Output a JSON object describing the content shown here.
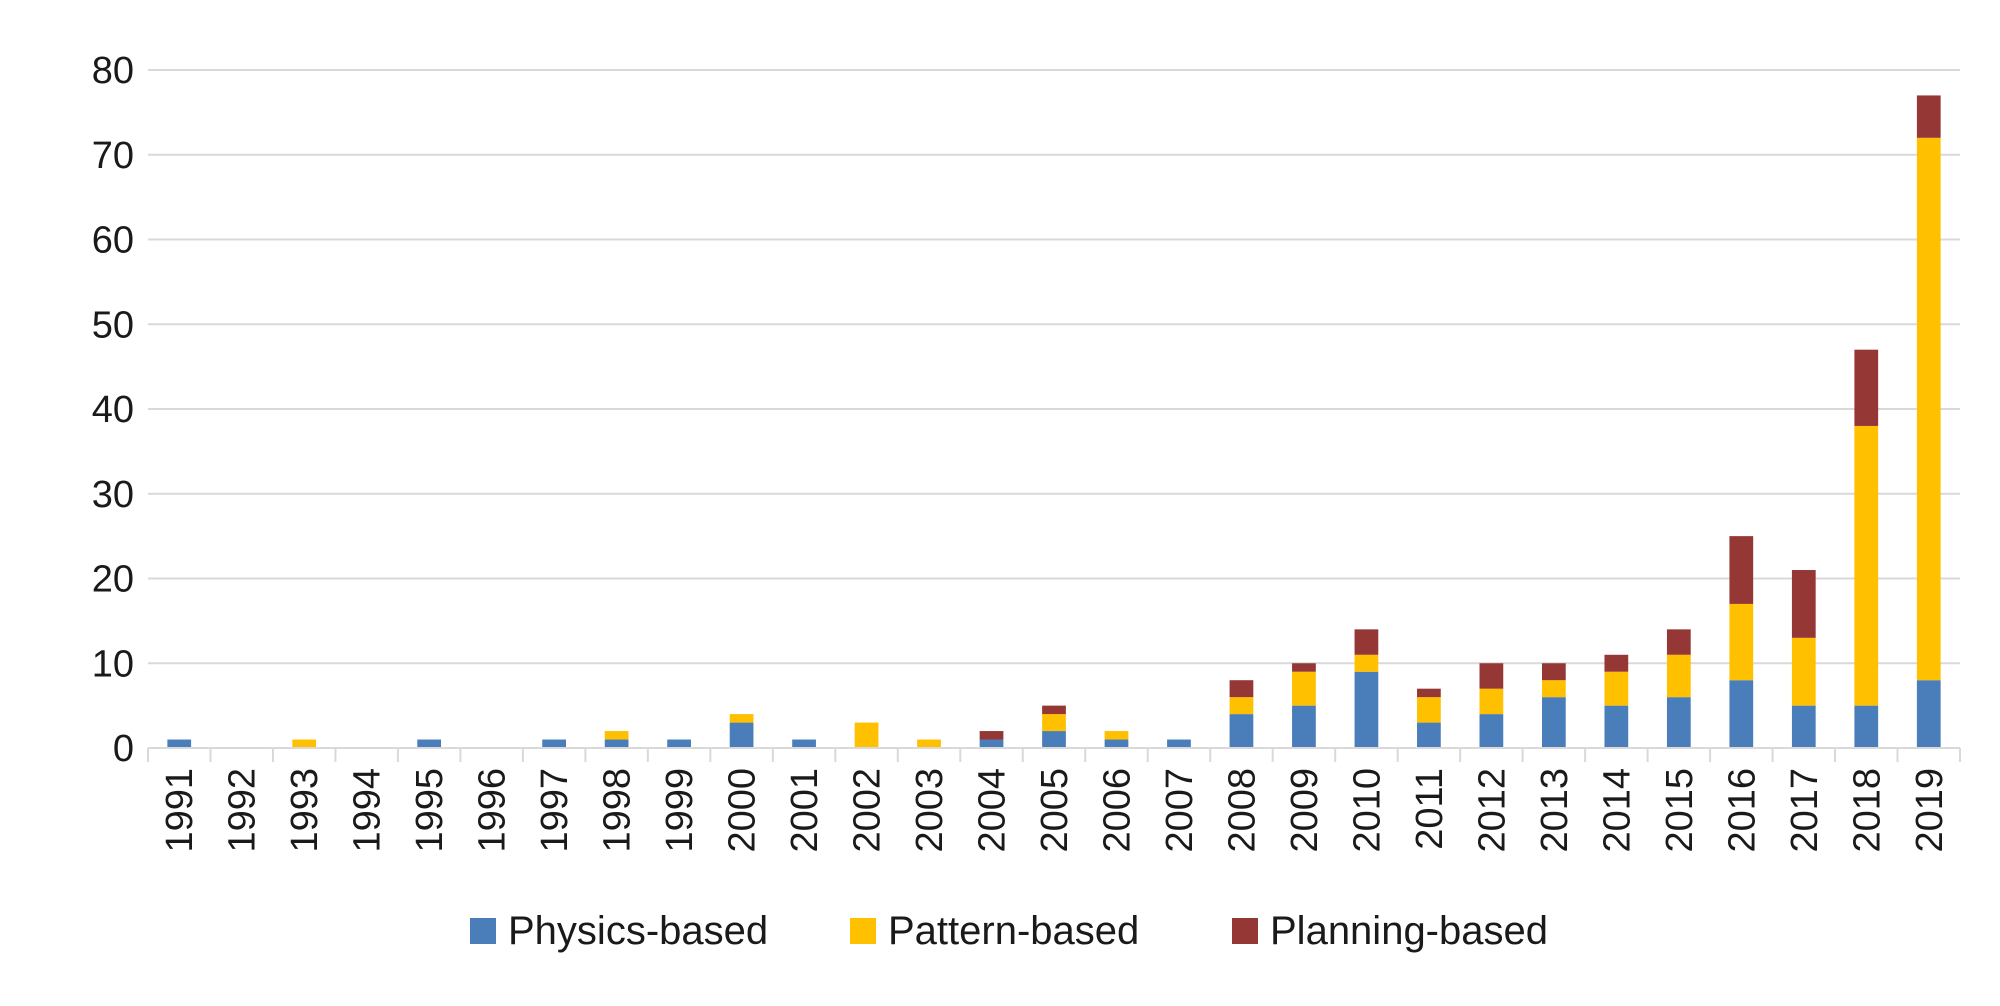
{
  "chart_data": {
    "type": "bar",
    "stacked": true,
    "title": "",
    "xlabel": "",
    "ylabel": "",
    "ylim": [
      0,
      80
    ],
    "yticks": [
      0,
      10,
      20,
      30,
      40,
      50,
      60,
      70,
      80
    ],
    "grid": true,
    "legend_position": "bottom",
    "categories": [
      "1991",
      "1992",
      "1993",
      "1994",
      "1995",
      "1996",
      "1997",
      "1998",
      "1999",
      "2000",
      "2001",
      "2002",
      "2003",
      "2004",
      "2005",
      "2006",
      "2007",
      "2008",
      "2009",
      "2010",
      "2011",
      "2012",
      "2013",
      "2014",
      "2015",
      "2016",
      "2017",
      "2018",
      "2019"
    ],
    "series": [
      {
        "name": "Physics-based",
        "color": "#4a7ebb",
        "values": [
          1,
          0,
          0,
          0,
          1,
          0,
          1,
          1,
          1,
          3,
          1,
          0,
          0,
          1,
          2,
          1,
          1,
          4,
          5,
          9,
          3,
          4,
          6,
          5,
          6,
          8,
          5,
          5,
          8
        ]
      },
      {
        "name": "Pattern-based",
        "color": "#ffc000",
        "values": [
          0,
          0,
          1,
          0,
          0,
          0,
          0,
          1,
          0,
          1,
          0,
          3,
          1,
          0,
          2,
          1,
          0,
          2,
          4,
          2,
          3,
          3,
          2,
          4,
          5,
          9,
          8,
          33,
          64
        ]
      },
      {
        "name": "Planning-based",
        "color": "#953735",
        "values": [
          0,
          0,
          0,
          0,
          0,
          0,
          0,
          0,
          0,
          0,
          0,
          0,
          0,
          1,
          1,
          0,
          0,
          2,
          1,
          3,
          1,
          3,
          2,
          2,
          3,
          8,
          8,
          9,
          5
        ]
      }
    ]
  }
}
